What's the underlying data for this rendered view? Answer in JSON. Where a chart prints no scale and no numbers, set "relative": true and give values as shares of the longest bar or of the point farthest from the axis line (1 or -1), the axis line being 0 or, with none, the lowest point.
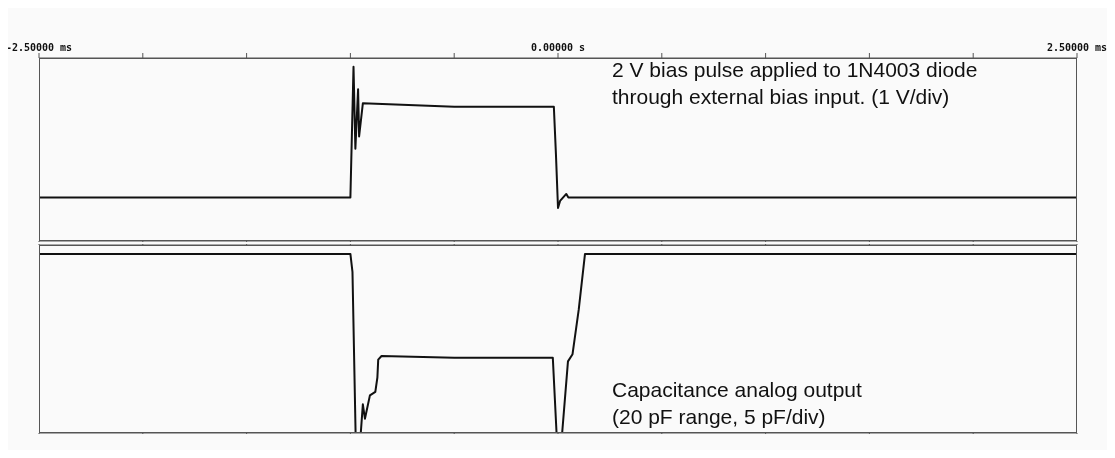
{
  "chart_data": [
    {
      "type": "line",
      "relative": true,
      "x": [
        -2.5,
        -1.5,
        -1.0,
        -0.985,
        -0.976,
        -0.963,
        -0.958,
        -0.94,
        -0.5,
        -0.02,
        -0.01,
        0.0,
        0.01,
        0.04,
        0.05,
        1.0,
        2.5
      ],
      "series": [
        {
          "color": "#111111",
          "values": [
            0.25,
            0.25,
            0.25,
            1.0,
            0.53,
            0.87,
            0.6,
            0.79,
            0.77,
            0.77,
            0.5,
            0.19,
            0.23,
            0.27,
            0.25,
            0.25,
            0.25
          ]
        }
      ],
      "xlim": [
        -2.5,
        2.5
      ],
      "xticks": [
        {
          "value": -2.5,
          "label": "-2.50000 ms"
        },
        {
          "value": -2.0,
          "label": null
        },
        {
          "value": -1.5,
          "label": null
        },
        {
          "value": -1.0,
          "label": null
        },
        {
          "value": -0.5,
          "label": null
        },
        {
          "value": 0,
          "label": "0.00000 s"
        },
        {
          "value": 0.5,
          "label": null
        },
        {
          "value": 1.0,
          "label": null
        },
        {
          "value": 1.5,
          "label": null
        },
        {
          "value": 2.0,
          "label": null
        },
        {
          "value": 2.5,
          "label": "2.50000 ms"
        }
      ],
      "annotations": [
        "2 V bias pulse applied to 1N4003 diode through external bias input. (1 V/div)"
      ]
    },
    {
      "type": "line",
      "relative": true,
      "tick_labels": false,
      "x": [
        -2.5,
        -1.5,
        -1.0,
        -0.99,
        -0.975,
        -0.95,
        -0.94,
        -0.93,
        -0.906,
        -0.88,
        -0.87,
        -0.866,
        -0.85,
        -0.5,
        -0.025,
        -0.007,
        0.02,
        0.048,
        0.07,
        0.1,
        0.13,
        1.0,
        2.5
      ],
      "series": [
        {
          "color": "#111111",
          "values": [
            1.0,
            1.0,
            1.0,
            0.9,
            0,
            0,
            0.16,
            0.08,
            0.21,
            0.23,
            0.31,
            0.41,
            0.43,
            0.42,
            0.42,
            0,
            0,
            0.4,
            0.44,
            0.69,
            1.0,
            1.0,
            1.0
          ]
        }
      ],
      "xlim": [
        -2.5,
        2.5
      ],
      "xticks": [
        {
          "value": -2.5,
          "label": null
        },
        {
          "value": -2.0,
          "label": null
        },
        {
          "value": -1.5,
          "label": null
        },
        {
          "value": -1.0,
          "label": null
        },
        {
          "value": -0.5,
          "label": null
        },
        {
          "value": 0,
          "label": null
        },
        {
          "value": 0.5,
          "label": null
        },
        {
          "value": 1.0,
          "label": null
        },
        {
          "value": 1.5,
          "label": null
        },
        {
          "value": 2.0,
          "label": null
        },
        {
          "value": 2.5,
          "label": null
        }
      ],
      "annotations": [
        "Capacitance analog output (20 pF range, 5 pF/div)"
      ]
    }
  ]
}
